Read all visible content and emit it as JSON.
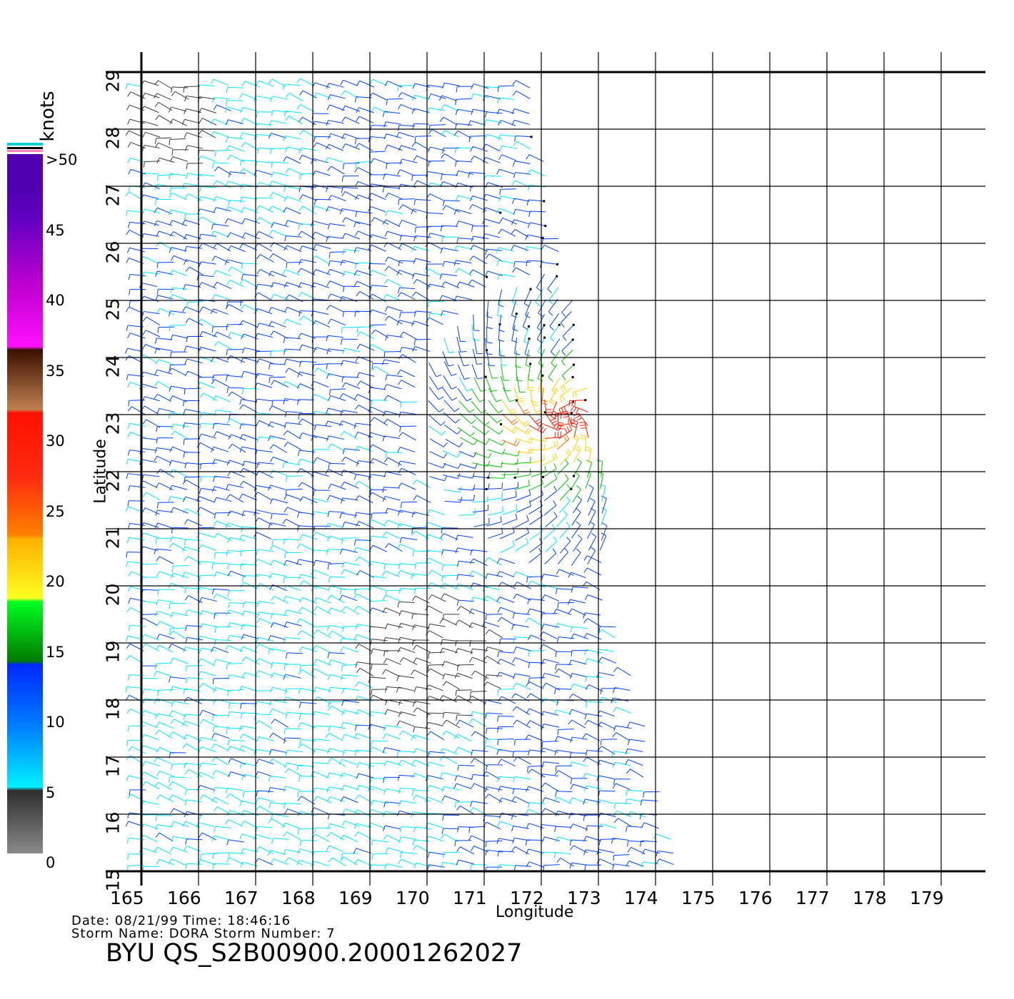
{
  "map": {
    "lon_ticks": [
      "165",
      "166",
      "167",
      "168",
      "169",
      "170",
      "171",
      "172",
      "173",
      "174",
      "175",
      "176",
      "177",
      "178",
      "179"
    ],
    "lat_ticks": [
      "15",
      "16",
      "17",
      "18",
      "19",
      "20",
      "21",
      "22",
      "23",
      "24",
      "25",
      "26",
      "27",
      "28",
      "29"
    ],
    "lon_range": [
      165,
      179.4
    ],
    "lat_range": [
      15,
      29
    ],
    "x_label": "Longitude",
    "y_label": "Latitude",
    "grid": true
  },
  "colorbar": {
    "units": "knots",
    "labels": [
      ">50",
      "45",
      "40",
      "35",
      "30",
      "25",
      "20",
      "15",
      "10",
      "5",
      "0"
    ],
    "colors": {
      "0-5": "#3a3a3a",
      "5-10": "#00e5ff",
      "10-15": "#0040ff",
      "15-20": "#00c800",
      "20-25": "#ffd200",
      "25-30": "#ff6a00",
      "30-35": "#ff1a00",
      "35-40": "#8b4a2a",
      "40-45": "#ff00ff",
      "45-50": "#9000c8"
    }
  },
  "info": {
    "date_line": "Date: 08/21/99   Time: 18:46:16",
    "storm_line": "Storm Name: DORA   Storm Number: 7",
    "product_id": "BYU QS_S2B00900.20001262027"
  }
}
